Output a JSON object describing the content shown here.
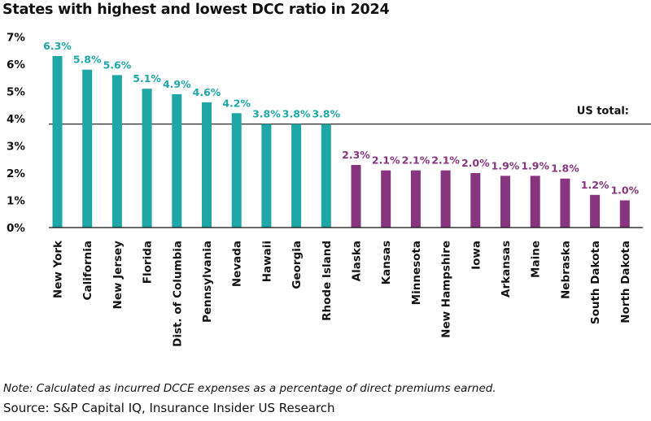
{
  "chart_data": {
    "type": "bar",
    "title": "States with highest and lowest DCC ratio in 2024",
    "categories": [
      "New York",
      "California",
      "New Jersey",
      "Florida",
      "Dist. of Columbia",
      "Pennsylvania",
      "Nevada",
      "Hawaii",
      "Georgia",
      "Rhode Island",
      "Alaska",
      "Kansas",
      "Minnesota",
      "New Hampshire",
      "Iowa",
      "Arkansas",
      "Maine",
      "Nebraska",
      "South Dakota",
      "North Dakota"
    ],
    "values": [
      6.3,
      5.8,
      5.6,
      5.1,
      4.9,
      4.6,
      4.2,
      3.8,
      3.8,
      3.8,
      2.3,
      2.1,
      2.1,
      2.1,
      2.0,
      1.9,
      1.9,
      1.8,
      1.2,
      1.0
    ],
    "data_labels": [
      "6.3%",
      "5.8%",
      "5.6%",
      "5.1%",
      "4.9%",
      "4.6%",
      "4.2%",
      "3.8%",
      "3.8%",
      "3.8%",
      "2.3%",
      "2.1%",
      "2.1%",
      "2.1%",
      "2.0%",
      "1.9%",
      "1.9%",
      "1.8%",
      "1.2%",
      "1.0%"
    ],
    "groups": [
      "highest",
      "highest",
      "highest",
      "highest",
      "highest",
      "highest",
      "highest",
      "highest",
      "highest",
      "highest",
      "lowest",
      "lowest",
      "lowest",
      "lowest",
      "lowest",
      "lowest",
      "lowest",
      "lowest",
      "lowest",
      "lowest"
    ],
    "ylim": [
      0,
      7
    ],
    "yticks": [
      0,
      1,
      2,
      3,
      4,
      5,
      6,
      7
    ],
    "ytick_labels": [
      "0%",
      "1%",
      "2%",
      "3%",
      "4%",
      "5%",
      "6%",
      "7%"
    ],
    "xlabel": "",
    "ylabel": "",
    "reference_line": {
      "label": "US total:",
      "value": 3.8
    },
    "colors": {
      "highest": "#1fa6a6",
      "lowest": "#87357f",
      "axis": "#111111",
      "reference": "#111111"
    }
  },
  "footer": {
    "note": "Note: Calculated as incurred DCCE expenses as a percentage of direct premiums earned.",
    "source": "Source: S&P Capital IQ, Insurance Insider US Research"
  }
}
